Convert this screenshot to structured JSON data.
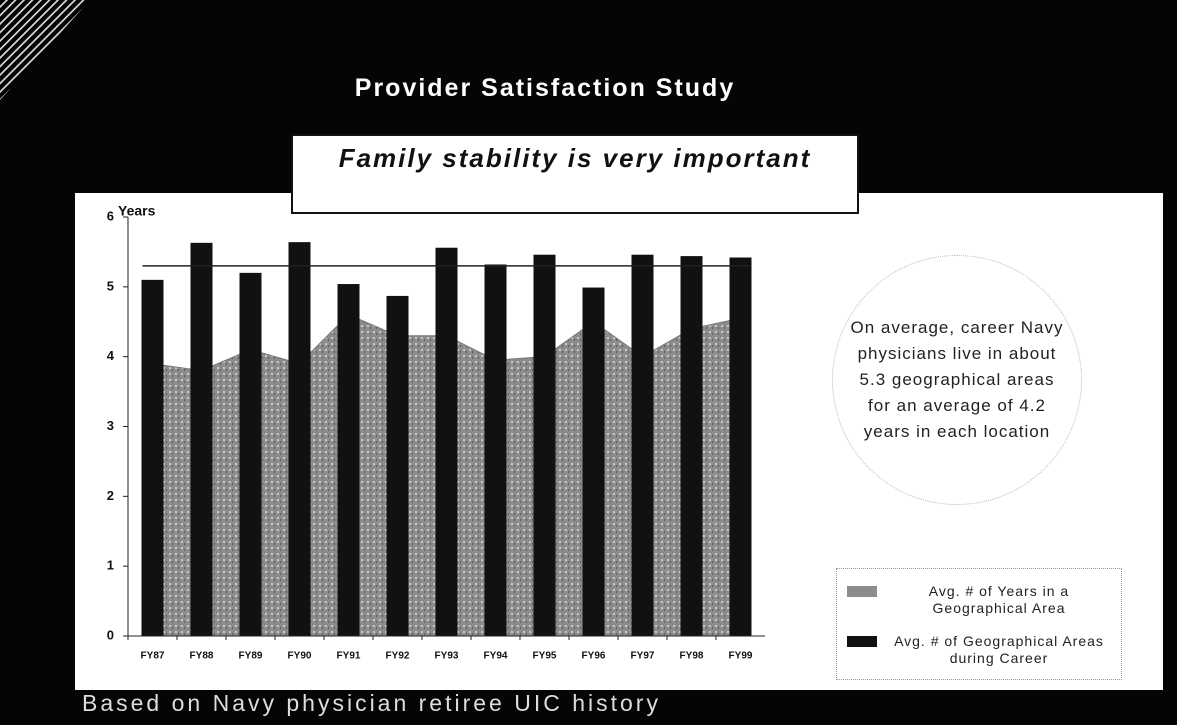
{
  "chart_data": {
    "type": "bar",
    "title": "Provider Satisfaction Study",
    "subtitle": "Family stability is very important",
    "y_label": "Years",
    "annotation": "On average, career Navy physicians live in about 5.3 geographical areas for an average of 4.2 years in each location",
    "footnote": "Based on Navy physician retiree UIC history",
    "categories": [
      "FY87",
      "FY88",
      "FY89",
      "FY90",
      "FY91",
      "FY92",
      "FY93",
      "FY94",
      "FY95",
      "FY96",
      "FY97",
      "FY98",
      "FY99"
    ],
    "series": [
      {
        "name": "Avg. # of Years in a Geographical Area",
        "type": "area",
        "color": "#9a9a9a",
        "values": [
          3.9,
          3.8,
          4.1,
          3.9,
          4.6,
          4.3,
          4.3,
          3.95,
          4.0,
          4.5,
          4.0,
          4.4,
          4.55
        ]
      },
      {
        "name": "Avg. # of Geographical Areas during Career",
        "type": "bar",
        "color": "#111111",
        "values": [
          5.1,
          5.63,
          5.2,
          5.64,
          5.04,
          4.87,
          5.56,
          5.32,
          5.46,
          4.99,
          5.46,
          5.44,
          5.42
        ]
      }
    ],
    "average_line": 5.3,
    "ylim": [
      0,
      6
    ],
    "yticks": [
      0,
      1,
      2,
      3,
      4,
      5,
      6
    ]
  }
}
